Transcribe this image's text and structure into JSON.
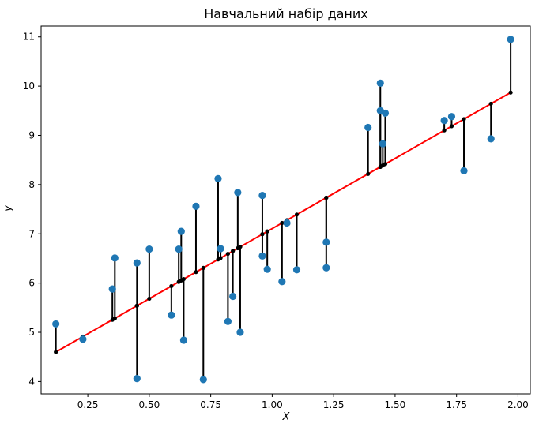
{
  "chart_data": {
    "type": "scatter",
    "title": "Навчальний набір даних",
    "xlabel": "X",
    "ylabel": "y",
    "xlim": [
      0.06,
      2.05
    ],
    "ylim": [
      3.75,
      11.22
    ],
    "xticks": [
      0.25,
      0.5,
      0.75,
      1.0,
      1.25,
      1.5,
      1.75,
      2.0
    ],
    "xtick_labels": [
      "0.25",
      "0.50",
      "0.75",
      "1.00",
      "1.25",
      "1.50",
      "1.75",
      "2.00"
    ],
    "yticks": [
      4,
      5,
      6,
      7,
      8,
      9,
      10,
      11
    ],
    "ytick_labels": [
      "4",
      "5",
      "6",
      "7",
      "8",
      "9",
      "10",
      "11"
    ],
    "grid": false,
    "regression_line": {
      "color": "#ff0000",
      "x": [
        0.12,
        1.97
      ],
      "y": [
        4.6,
        9.87
      ]
    },
    "colors": {
      "observed": "#1f77b4",
      "predicted": "#000000",
      "residual": "#000000"
    },
    "points": [
      {
        "x": 0.12,
        "y": 5.17
      },
      {
        "x": 0.23,
        "y": 4.86
      },
      {
        "x": 0.35,
        "y": 5.88
      },
      {
        "x": 0.36,
        "y": 6.51
      },
      {
        "x": 0.45,
        "y": 6.41
      },
      {
        "x": 0.45,
        "y": 4.06
      },
      {
        "x": 0.5,
        "y": 6.69
      },
      {
        "x": 0.59,
        "y": 5.35
      },
      {
        "x": 0.62,
        "y": 6.69
      },
      {
        "x": 0.63,
        "y": 7.05
      },
      {
        "x": 0.64,
        "y": 4.84
      },
      {
        "x": 0.69,
        "y": 7.56
      },
      {
        "x": 0.72,
        "y": 4.04
      },
      {
        "x": 0.78,
        "y": 8.12
      },
      {
        "x": 0.79,
        "y": 6.7
      },
      {
        "x": 0.82,
        "y": 5.22
      },
      {
        "x": 0.84,
        "y": 5.73
      },
      {
        "x": 0.86,
        "y": 7.84
      },
      {
        "x": 0.87,
        "y": 5.0
      },
      {
        "x": 0.96,
        "y": 7.78
      },
      {
        "x": 0.96,
        "y": 6.55
      },
      {
        "x": 0.98,
        "y": 6.28
      },
      {
        "x": 1.04,
        "y": 6.03
      },
      {
        "x": 1.06,
        "y": 7.22
      },
      {
        "x": 1.1,
        "y": 6.27
      },
      {
        "x": 1.22,
        "y": 6.83
      },
      {
        "x": 1.22,
        "y": 6.31
      },
      {
        "x": 1.39,
        "y": 9.16
      },
      {
        "x": 1.44,
        "y": 10.06
      },
      {
        "x": 1.44,
        "y": 9.5
      },
      {
        "x": 1.45,
        "y": 8.83
      },
      {
        "x": 1.46,
        "y": 9.45
      },
      {
        "x": 1.7,
        "y": 9.3
      },
      {
        "x": 1.73,
        "y": 9.38
      },
      {
        "x": 1.78,
        "y": 8.28
      },
      {
        "x": 1.89,
        "y": 8.93
      },
      {
        "x": 1.97,
        "y": 10.95
      }
    ]
  }
}
